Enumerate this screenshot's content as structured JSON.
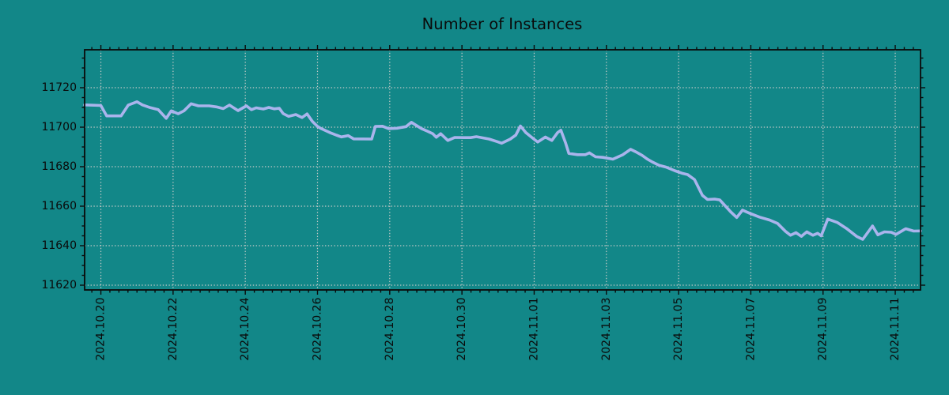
{
  "figure": {
    "background_color": "#128788",
    "line_color": "#aab4ec",
    "grid_color": "#c6cac7",
    "text_color": "#0a0a0a"
  },
  "chart_data": {
    "type": "line",
    "title": "Number of Instances",
    "grid": true,
    "legend": "none",
    "x_axis": {
      "unit": "date",
      "tick_label_rotation_deg": 90,
      "tick_labels": [
        "2024.10.20",
        "2024.10.22",
        "2024.10.24",
        "2024.10.26",
        "2024.10.28",
        "2024.10.30",
        "2024.11.01",
        "2024.11.03",
        "2024.11.05",
        "2024.11.07",
        "2024.11.09",
        "2024.11.11"
      ],
      "tick_days": [
        0,
        2,
        4,
        6,
        8,
        10,
        12,
        14,
        16,
        18,
        20,
        22
      ],
      "range_days": [
        -0.45,
        22.7
      ],
      "minor_tick_step_days": 0.25
    },
    "y_axis": {
      "tick_labels": [
        "11620",
        "11640",
        "11660",
        "11680",
        "11700",
        "11720"
      ],
      "ticks": [
        11620,
        11640,
        11660,
        11680,
        11700,
        11720
      ],
      "range": [
        11617.6,
        11739.2
      ],
      "minor_tick_step": 5
    },
    "series": [
      {
        "name": "Number of Instances",
        "x_days_since_2024_10_20": true,
        "points": [
          [
            -0.45,
            11711.3
          ],
          [
            0.0,
            11711.0
          ],
          [
            0.16,
            11705.7
          ],
          [
            0.56,
            11705.7
          ],
          [
            0.76,
            11711.2
          ],
          [
            1.0,
            11712.9
          ],
          [
            1.15,
            11711.3
          ],
          [
            1.37,
            11709.9
          ],
          [
            1.59,
            11708.9
          ],
          [
            1.81,
            11704.5
          ],
          [
            1.95,
            11708.3
          ],
          [
            2.14,
            11706.8
          ],
          [
            2.3,
            11708.3
          ],
          [
            2.5,
            11711.9
          ],
          [
            2.7,
            11710.8
          ],
          [
            3.0,
            11710.8
          ],
          [
            3.2,
            11710.3
          ],
          [
            3.39,
            11709.4
          ],
          [
            3.56,
            11711.2
          ],
          [
            3.8,
            11708.4
          ],
          [
            4.03,
            11710.8
          ],
          [
            4.17,
            11708.9
          ],
          [
            4.3,
            11709.8
          ],
          [
            4.5,
            11709.2
          ],
          [
            4.65,
            11710.0
          ],
          [
            4.8,
            11709.3
          ],
          [
            4.94,
            11709.6
          ],
          [
            5.05,
            11706.9
          ],
          [
            5.2,
            11705.5
          ],
          [
            5.4,
            11706.4
          ],
          [
            5.57,
            11704.9
          ],
          [
            5.71,
            11706.7
          ],
          [
            5.86,
            11702.9
          ],
          [
            6.0,
            11700.4
          ],
          [
            6.1,
            11699.3
          ],
          [
            6.34,
            11697.3
          ],
          [
            6.52,
            11696.0
          ],
          [
            6.66,
            11695.1
          ],
          [
            6.85,
            11695.7
          ],
          [
            7.0,
            11694.1
          ],
          [
            7.5,
            11694.0
          ],
          [
            7.6,
            11700.4
          ],
          [
            7.8,
            11700.5
          ],
          [
            7.97,
            11699.3
          ],
          [
            8.2,
            11699.5
          ],
          [
            8.45,
            11700.3
          ],
          [
            8.6,
            11702.5
          ],
          [
            8.75,
            11700.7
          ],
          [
            8.88,
            11699.3
          ],
          [
            9.04,
            11698.0
          ],
          [
            9.19,
            11696.7
          ],
          [
            9.29,
            11694.9
          ],
          [
            9.41,
            11696.7
          ],
          [
            9.61,
            11693.3
          ],
          [
            9.8,
            11694.8
          ],
          [
            10.05,
            11694.7
          ],
          [
            10.24,
            11694.7
          ],
          [
            10.4,
            11695.2
          ],
          [
            10.75,
            11694.0
          ],
          [
            10.97,
            11692.7
          ],
          [
            11.1,
            11691.9
          ],
          [
            11.34,
            11694.0
          ],
          [
            11.49,
            11696.0
          ],
          [
            11.62,
            11700.6
          ],
          [
            11.77,
            11697.3
          ],
          [
            11.99,
            11694.0
          ],
          [
            12.1,
            11692.5
          ],
          [
            12.31,
            11695.0
          ],
          [
            12.49,
            11693.3
          ],
          [
            12.65,
            11697.3
          ],
          [
            12.74,
            11698.5
          ],
          [
            12.87,
            11692.0
          ],
          [
            12.96,
            11686.7
          ],
          [
            13.2,
            11686.1
          ],
          [
            13.42,
            11686.1
          ],
          [
            13.53,
            11687.0
          ],
          [
            13.7,
            11685.0
          ],
          [
            13.9,
            11684.7
          ],
          [
            14.18,
            11683.8
          ],
          [
            14.45,
            11686.0
          ],
          [
            14.67,
            11688.8
          ],
          [
            14.84,
            11687.3
          ],
          [
            14.99,
            11685.7
          ],
          [
            15.13,
            11683.9
          ],
          [
            15.27,
            11682.4
          ],
          [
            15.46,
            11680.7
          ],
          [
            15.65,
            11679.8
          ],
          [
            15.89,
            11678.0
          ],
          [
            16.09,
            11676.7
          ],
          [
            16.25,
            11676.0
          ],
          [
            16.44,
            11673.5
          ],
          [
            16.66,
            11665.5
          ],
          [
            16.8,
            11663.4
          ],
          [
            17.0,
            11663.6
          ],
          [
            17.14,
            11663.2
          ],
          [
            17.3,
            11660.0
          ],
          [
            17.45,
            11657.0
          ],
          [
            17.61,
            11654.3
          ],
          [
            17.77,
            11658.0
          ],
          [
            17.96,
            11656.5
          ],
          [
            18.24,
            11654.5
          ],
          [
            18.52,
            11653.0
          ],
          [
            18.74,
            11651.3
          ],
          [
            18.96,
            11647.3
          ],
          [
            19.1,
            11645.3
          ],
          [
            19.25,
            11646.6
          ],
          [
            19.4,
            11644.7
          ],
          [
            19.55,
            11647.0
          ],
          [
            19.72,
            11645.3
          ],
          [
            19.85,
            11646.3
          ],
          [
            19.95,
            11645.0
          ],
          [
            20.13,
            11653.5
          ],
          [
            20.4,
            11651.7
          ],
          [
            20.65,
            11648.7
          ],
          [
            20.93,
            11644.7
          ],
          [
            21.1,
            11643.2
          ],
          [
            21.37,
            11650.0
          ],
          [
            21.52,
            11645.5
          ],
          [
            21.7,
            11647.0
          ],
          [
            21.89,
            11646.8
          ],
          [
            22.02,
            11645.7
          ],
          [
            22.29,
            11648.6
          ],
          [
            22.51,
            11647.4
          ],
          [
            22.7,
            11647.5
          ]
        ]
      }
    ]
  }
}
